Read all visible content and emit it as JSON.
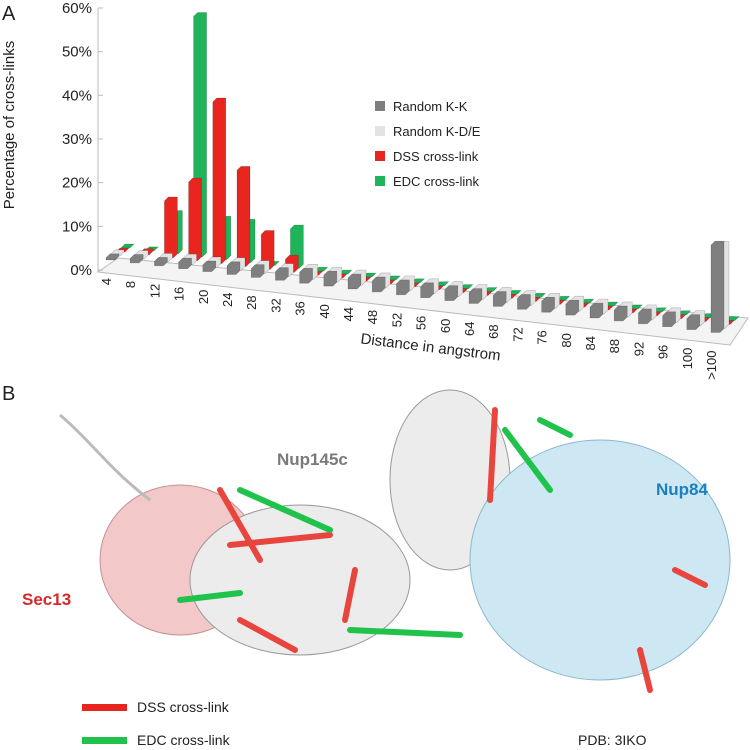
{
  "chart_data": {
    "type": "bar3d",
    "panel_label": "A",
    "y_label": "Percentage of cross-links",
    "x_label": "Distance in angstrom",
    "categories": [
      "4",
      "8",
      "12",
      "16",
      "20",
      "24",
      "28",
      "32",
      "36",
      "40",
      "44",
      "48",
      "52",
      "56",
      "60",
      "64",
      "68",
      "72",
      "76",
      "80",
      "84",
      "88",
      "92",
      "96",
      "100",
      ">100"
    ],
    "series": [
      {
        "name": "Random K-K",
        "color": "#7f7f7f",
        "values": [
          0.5,
          1,
          1,
          1.5,
          1.5,
          2,
          2,
          2,
          2.5,
          2.5,
          2.5,
          2.5,
          2.5,
          2.5,
          2.5,
          2.5,
          2.5,
          2.5,
          2.5,
          2.5,
          2.5,
          2.5,
          2.5,
          2.5,
          2.5,
          20
        ]
      },
      {
        "name": "Random K-D/E",
        "color": "#e3e3e3",
        "values": [
          0.5,
          1,
          1,
          1.5,
          1.5,
          2,
          2,
          2,
          2.5,
          2.5,
          2.5,
          2.5,
          2.5,
          2.5,
          2.5,
          2.5,
          2.5,
          2.5,
          2.5,
          2.5,
          2.5,
          2.5,
          2.5,
          2.5,
          2.5,
          19
        ]
      },
      {
        "name": "DSS cross-link",
        "color": "#e8251f",
        "values": [
          0,
          0.5,
          13,
          18,
          37,
          22,
          8,
          3,
          0,
          0,
          0,
          0,
          0,
          0,
          0,
          0,
          0,
          0,
          0,
          0,
          0,
          0,
          0,
          0,
          0,
          0
        ]
      },
      {
        "name": "EDC cross-link",
        "color": "#1fb35a",
        "values": [
          0,
          0,
          9,
          55,
          9,
          9,
          0,
          9,
          0,
          0,
          0,
          0,
          0,
          0,
          0,
          0,
          0,
          0,
          0,
          0,
          0,
          0,
          0,
          0,
          0,
          0
        ]
      }
    ],
    "ylim": [
      0,
      60
    ],
    "yticks": [
      {
        "value": 0,
        "label": "0%"
      },
      {
        "value": 10,
        "label": "10%"
      },
      {
        "value": 20,
        "label": "20%"
      },
      {
        "value": 30,
        "label": "30%"
      },
      {
        "value": 40,
        "label": "40%"
      },
      {
        "value": 50,
        "label": "50%"
      },
      {
        "value": 60,
        "label": "60%"
      }
    ]
  },
  "panel_b": {
    "panel_label": "B",
    "labels": [
      "Nup145c",
      "Nup84",
      "Sec13"
    ],
    "legend": [
      "DSS cross-link",
      "EDC cross-link"
    ],
    "pdb": "PDB: 3IKO"
  }
}
